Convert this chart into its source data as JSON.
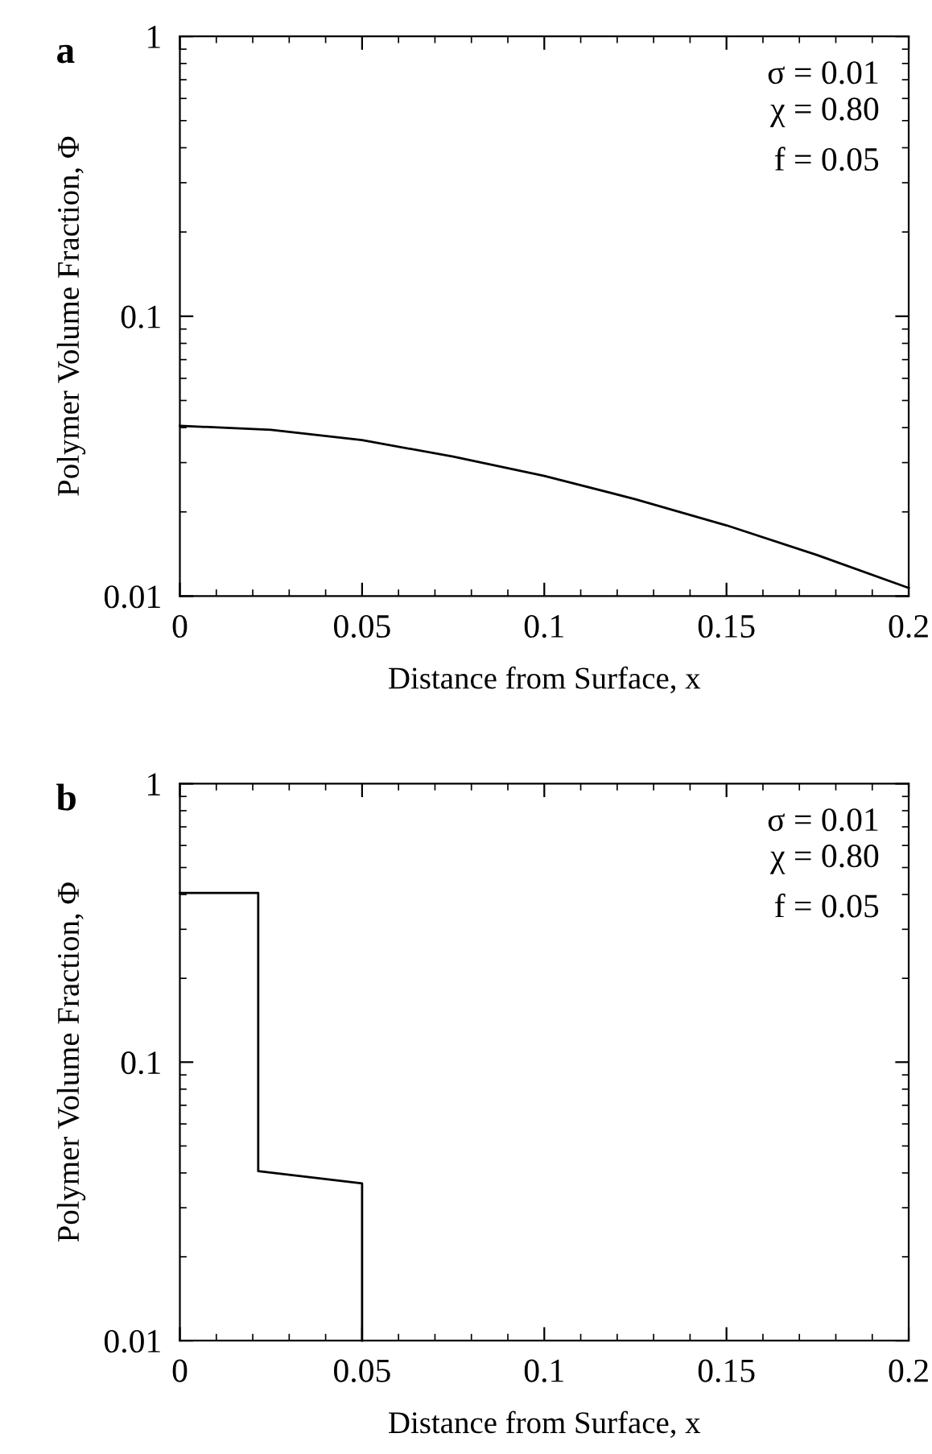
{
  "chart_data": [
    {
      "type": "line",
      "title": "a",
      "xlabel": "Distance from Surface, x",
      "ylabel": "Polymer Volume Fraction, Φ",
      "log": "y",
      "series": [
        {
          "color": "#000000",
          "x": [
            0,
            0.025,
            0.05,
            0.075,
            0.1,
            0.125,
            0.15,
            0.175,
            0.2
          ],
          "values": [
            0.0406,
            0.0393,
            0.0361,
            0.0315,
            0.0269,
            0.0222,
            0.0179,
            0.014,
            0.0107
          ]
        }
      ],
      "xlim": [
        0,
        0.2
      ],
      "ylim": [
        0.01,
        1
      ],
      "xticks": [
        0,
        0.05,
        0.1,
        0.15,
        0.2
      ],
      "yticks": [
        0.01,
        0.1,
        1
      ],
      "annotations": [
        "σ = 0.01",
        "χ = 0.80",
        "f = 0.05"
      ],
      "grid": false,
      "legend": false,
      "marker": "none",
      "line_style": "solid"
    },
    {
      "type": "line",
      "title": "b",
      "xlabel": "Distance from Surface, x",
      "ylabel": "Polymer Volume Fraction, Φ",
      "log": "y",
      "series": [
        {
          "color": "#000000",
          "x": [
            0,
            0.0215,
            0.0215,
            0.05,
            0.05
          ],
          "values": [
            0.405,
            0.405,
            0.0406,
            0.0367,
            0.01
          ]
        }
      ],
      "xlim": [
        0,
        0.2
      ],
      "ylim": [
        0.01,
        1
      ],
      "xticks": [
        0,
        0.05,
        0.1,
        0.15,
        0.2
      ],
      "yticks": [
        0.01,
        0.1,
        1
      ],
      "annotations": [
        "σ = 0.01",
        "χ = 0.80",
        "f = 0.05"
      ],
      "grid": false,
      "legend": false,
      "marker": "none",
      "line_style": "solid"
    }
  ]
}
